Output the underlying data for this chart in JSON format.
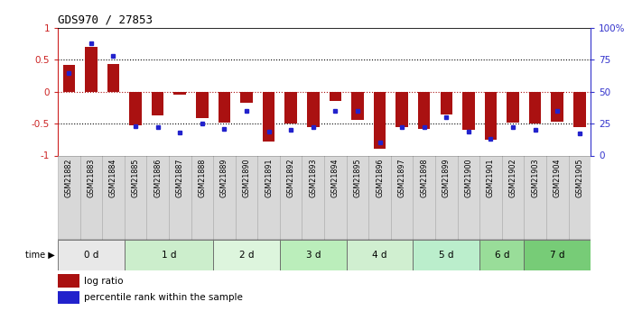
{
  "title": "GDS970 / 27853",
  "samples": [
    "GSM21882",
    "GSM21883",
    "GSM21884",
    "GSM21885",
    "GSM21886",
    "GSM21887",
    "GSM21888",
    "GSM21889",
    "GSM21890",
    "GSM21891",
    "GSM21892",
    "GSM21893",
    "GSM21894",
    "GSM21895",
    "GSM21896",
    "GSM21897",
    "GSM21898",
    "GSM21899",
    "GSM21900",
    "GSM21901",
    "GSM21902",
    "GSM21903",
    "GSM21904",
    "GSM21905"
  ],
  "log_ratio": [
    0.42,
    0.7,
    0.44,
    -0.52,
    -0.37,
    -0.05,
    -0.42,
    -0.48,
    -0.17,
    -0.78,
    -0.5,
    -0.55,
    -0.14,
    -0.44,
    -0.9,
    -0.55,
    -0.58,
    -0.35,
    -0.6,
    -0.75,
    -0.48,
    -0.5,
    -0.47,
    -0.55
  ],
  "pct_rank": [
    0.65,
    0.88,
    0.78,
    0.23,
    0.22,
    0.18,
    0.25,
    0.21,
    0.35,
    0.19,
    0.2,
    0.22,
    0.35,
    0.35,
    0.1,
    0.22,
    0.22,
    0.3,
    0.19,
    0.13,
    0.22,
    0.2,
    0.35,
    0.17
  ],
  "bar_color": "#aa1111",
  "dot_color": "#2222cc",
  "time_groups": [
    {
      "label": "0 d",
      "start": 0,
      "end": 3,
      "color": "#e8e8e8"
    },
    {
      "label": "1 d",
      "start": 3,
      "end": 7,
      "color": "#cceecc"
    },
    {
      "label": "2 d",
      "start": 7,
      "end": 10,
      "color": "#ddf5dd"
    },
    {
      "label": "3 d",
      "start": 10,
      "end": 13,
      "color": "#bbeebb"
    },
    {
      "label": "4 d",
      "start": 13,
      "end": 16,
      "color": "#d0efd0"
    },
    {
      "label": "5 d",
      "start": 16,
      "end": 19,
      "color": "#bbeecc"
    },
    {
      "label": "6 d",
      "start": 19,
      "end": 21,
      "color": "#99dd99"
    },
    {
      "label": "7 d",
      "start": 21,
      "end": 24,
      "color": "#77cc77"
    }
  ],
  "ylim": [
    -1.0,
    1.0
  ],
  "yticks_left": [
    -1.0,
    -0.5,
    0.0,
    0.5,
    1.0
  ],
  "ytick_labels_left": [
    "-1",
    "-0.5",
    "0",
    "0.5",
    "1"
  ],
  "yticks_right_pct": [
    0,
    25,
    50,
    75,
    100
  ],
  "ytick_labels_right": [
    "0",
    "25",
    "50",
    "75",
    "100%"
  ],
  "left_axis_color": "#cc2222",
  "right_axis_color": "#3333cc",
  "sample_cell_colors": [
    "#d8d8d8",
    "#d8d8d8",
    "#d8d8d8",
    "#d8d8d8",
    "#d8d8d8",
    "#d8d8d8",
    "#d8d8d8",
    "#d8d8d8",
    "#d8d8d8",
    "#d8d8d8",
    "#d8d8d8",
    "#d8d8d8",
    "#d8d8d8",
    "#d8d8d8",
    "#d8d8d8",
    "#d8d8d8",
    "#d8d8d8",
    "#d8d8d8",
    "#d8d8d8",
    "#d8d8d8",
    "#d8d8d8",
    "#d8d8d8",
    "#d8d8d8",
    "#d8d8d8"
  ]
}
